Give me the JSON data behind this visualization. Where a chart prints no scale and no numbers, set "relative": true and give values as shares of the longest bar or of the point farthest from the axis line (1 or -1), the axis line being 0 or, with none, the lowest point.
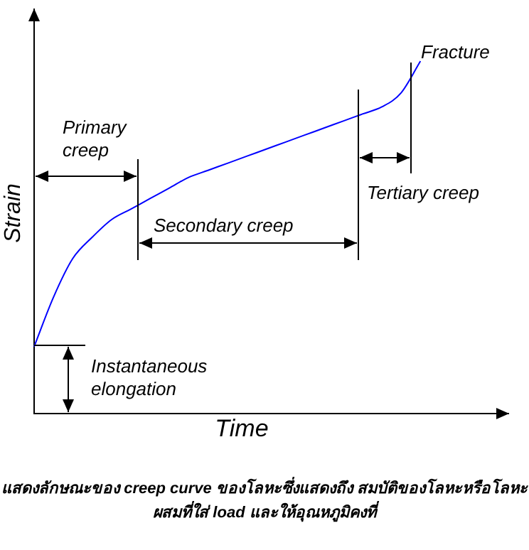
{
  "chart_data": {
    "type": "line",
    "relative": true,
    "xlabel": "Time",
    "ylabel": "Strain",
    "categories": [
      null,
      null,
      null,
      null,
      null,
      null,
      null,
      null,
      null,
      null,
      null,
      null,
      null,
      null,
      null,
      null,
      null,
      null,
      null,
      null,
      null,
      null,
      null,
      null,
      null
    ],
    "series": [
      {
        "color": "#0000ff",
        "values": [
          0.19,
          0.33,
          0.44,
          0.5,
          0.55,
          0.58,
          0.61,
          0.64,
          0.67,
          0.69,
          0.71,
          0.73,
          0.75,
          0.77,
          0.79,
          0.81,
          0.83,
          0.85,
          0.87,
          0.91,
          1,
          null,
          null,
          null,
          null
        ]
      }
    ],
    "annotations": [
      "Fracture",
      "Primary creep",
      "Secondary creep",
      "Tertiary creep",
      "Instantaneous elongation",
      "แสดงลักษณะของ creep curve ของโลหะซึ่งแสดงถึง สมบัติของโลหะหรือโลหะผสมที่ใส่ load และให้อุณหภูมิคงที่"
    ],
    "grid": false,
    "legend": false,
    "marker": "none",
    "line_style": "solid"
  }
}
